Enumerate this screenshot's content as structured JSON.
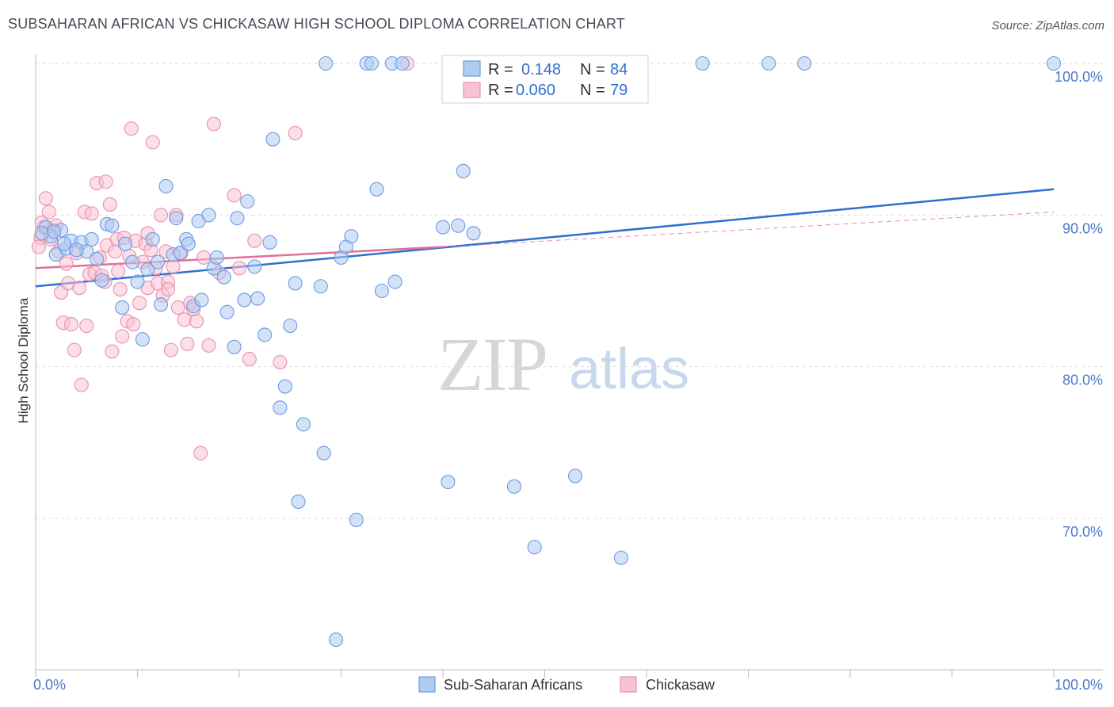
{
  "header": {
    "title": "SUBSAHARAN AFRICAN VS CHICKASAW HIGH SCHOOL DIPLOMA CORRELATION CHART",
    "source": "Source: ZipAtlas.com"
  },
  "watermark": {
    "zip": "ZIP",
    "atlas": "atlas"
  },
  "legend_box": {
    "row1": {
      "r_label": "R =",
      "r_value": "0.148",
      "n_label": "N =",
      "n_value": "84"
    },
    "row2": {
      "r_label": "R =",
      "r_value": "0.060",
      "n_label": "N =",
      "n_value": "79"
    }
  },
  "chart_data": {
    "type": "scatter",
    "ylabel": "High School Diploma",
    "xlabel": "",
    "xlim": [
      0,
      100
    ],
    "ylim": [
      62,
      101.5
    ],
    "x_tick_labels": [
      "0.0%",
      "100.0%"
    ],
    "y_ticks": [
      70,
      80,
      90,
      100
    ],
    "y_tick_labels": [
      "70.0%",
      "80.0%",
      "90.0%",
      "100.0%"
    ],
    "grid": "horizontal dashed",
    "legend": "bottom-center",
    "colors": {
      "blue_fill": "#aecbf0",
      "blue_stroke": "#6c9be0",
      "blue_line": "#2f6fd0",
      "pink_fill": "#f7c3d3",
      "pink_stroke": "#ea8fad",
      "pink_line": "#e06f98"
    },
    "series": [
      {
        "name": "Sub-Saharan Africans",
        "r": 0.148,
        "n": 84,
        "trend": {
          "x": [
            0,
            100
          ],
          "y": [
            85.3,
            91.7
          ],
          "style": "solid"
        },
        "points": [
          [
            1.0,
            89.2
          ],
          [
            1.5,
            88.6
          ],
          [
            2.5,
            89.0
          ],
          [
            2.0,
            87.4
          ],
          [
            3.0,
            87.8
          ],
          [
            3.5,
            88.3
          ],
          [
            4.5,
            88.2
          ],
          [
            5.0,
            87.6
          ],
          [
            5.5,
            88.4
          ],
          [
            6.0,
            87.1
          ],
          [
            6.5,
            85.7
          ],
          [
            7.0,
            89.4
          ],
          [
            7.5,
            89.3
          ],
          [
            8.5,
            83.9
          ],
          [
            8.8,
            88.1
          ],
          [
            9.5,
            86.9
          ],
          [
            10.0,
            85.6
          ],
          [
            10.5,
            81.8
          ],
          [
            11.0,
            86.4
          ],
          [
            11.5,
            88.4
          ],
          [
            12.0,
            86.9
          ],
          [
            12.3,
            84.1
          ],
          [
            12.8,
            91.9
          ],
          [
            13.5,
            87.4
          ],
          [
            13.8,
            89.8
          ],
          [
            14.2,
            87.5
          ],
          [
            14.8,
            88.4
          ],
          [
            15.0,
            88.1
          ],
          [
            15.5,
            84.0
          ],
          [
            16.0,
            89.6
          ],
          [
            16.3,
            84.4
          ],
          [
            17.0,
            90.0
          ],
          [
            17.5,
            86.5
          ],
          [
            17.8,
            87.2
          ],
          [
            18.5,
            85.9
          ],
          [
            18.8,
            83.6
          ],
          [
            19.5,
            81.3
          ],
          [
            19.8,
            89.8
          ],
          [
            20.5,
            84.4
          ],
          [
            20.8,
            90.9
          ],
          [
            21.5,
            86.6
          ],
          [
            21.8,
            84.5
          ],
          [
            22.5,
            82.1
          ],
          [
            23.0,
            88.2
          ],
          [
            23.3,
            95.0
          ],
          [
            24.0,
            77.3
          ],
          [
            24.5,
            78.7
          ],
          [
            25.0,
            82.7
          ],
          [
            25.5,
            85.5
          ],
          [
            25.8,
            71.1
          ],
          [
            26.3,
            76.2
          ],
          [
            28.0,
            85.3
          ],
          [
            28.3,
            74.3
          ],
          [
            28.5,
            100.0
          ],
          [
            29.5,
            62.0
          ],
          [
            30.0,
            87.2
          ],
          [
            30.5,
            87.9
          ],
          [
            31.0,
            88.6
          ],
          [
            31.5,
            69.9
          ],
          [
            32.5,
            100.0
          ],
          [
            33.0,
            100.0
          ],
          [
            33.5,
            91.7
          ],
          [
            34.0,
            85.0
          ],
          [
            35.0,
            100.0
          ],
          [
            35.3,
            85.6
          ],
          [
            36.0,
            100.0
          ],
          [
            40.0,
            89.2
          ],
          [
            40.5,
            72.4
          ],
          [
            41.5,
            89.3
          ],
          [
            42.0,
            92.9
          ],
          [
            43.0,
            88.8
          ],
          [
            47.0,
            72.1
          ],
          [
            49.0,
            68.1
          ],
          [
            52.0,
            100.0
          ],
          [
            53.0,
            72.8
          ],
          [
            57.5,
            67.4
          ],
          [
            65.5,
            100.0
          ],
          [
            72.0,
            100.0
          ],
          [
            75.5,
            100.0
          ],
          [
            100.0,
            100.0
          ],
          [
            0.6,
            88.8
          ],
          [
            1.8,
            88.9
          ],
          [
            2.8,
            88.1
          ],
          [
            4.0,
            87.7
          ]
        ]
      },
      {
        "name": "Chickasaw",
        "r": 0.06,
        "n": 79,
        "trend": {
          "x": [
            0,
            40
          ],
          "y": [
            86.5,
            87.9
          ],
          "style": "solid",
          "extension": {
            "x": [
              40,
              100
            ],
            "y": [
              87.9,
              90.2
            ],
            "style": "dashed"
          }
        },
        "points": [
          [
            0.5,
            88.5
          ],
          [
            0.8,
            89.2
          ],
          [
            1.0,
            91.1
          ],
          [
            1.3,
            90.2
          ],
          [
            1.5,
            88.4
          ],
          [
            1.8,
            89.0
          ],
          [
            2.0,
            89.3
          ],
          [
            2.3,
            87.6
          ],
          [
            2.5,
            84.9
          ],
          [
            2.7,
            82.9
          ],
          [
            3.0,
            86.8
          ],
          [
            3.2,
            85.5
          ],
          [
            3.5,
            82.8
          ],
          [
            3.8,
            81.1
          ],
          [
            4.0,
            87.5
          ],
          [
            4.3,
            85.2
          ],
          [
            4.5,
            78.8
          ],
          [
            4.8,
            90.2
          ],
          [
            5.0,
            82.7
          ],
          [
            5.3,
            86.1
          ],
          [
            5.5,
            90.1
          ],
          [
            5.8,
            86.2
          ],
          [
            6.0,
            92.1
          ],
          [
            6.3,
            87.2
          ],
          [
            6.5,
            86.0
          ],
          [
            6.8,
            85.6
          ],
          [
            7.0,
            88.0
          ],
          [
            7.3,
            90.7
          ],
          [
            7.5,
            81.0
          ],
          [
            7.8,
            87.6
          ],
          [
            8.0,
            88.4
          ],
          [
            8.3,
            85.1
          ],
          [
            8.5,
            82.0
          ],
          [
            8.7,
            88.5
          ],
          [
            9.0,
            83.0
          ],
          [
            9.2,
            87.3
          ],
          [
            9.4,
            95.7
          ],
          [
            9.6,
            82.8
          ],
          [
            9.8,
            88.3
          ],
          [
            10.2,
            84.2
          ],
          [
            10.5,
            86.9
          ],
          [
            10.8,
            88.1
          ],
          [
            11.0,
            85.2
          ],
          [
            11.3,
            87.7
          ],
          [
            11.5,
            94.8
          ],
          [
            11.8,
            86.5
          ],
          [
            12.0,
            85.5
          ],
          [
            12.3,
            90.0
          ],
          [
            12.5,
            84.7
          ],
          [
            12.8,
            87.6
          ],
          [
            13.0,
            85.6
          ],
          [
            13.3,
            81.1
          ],
          [
            13.5,
            86.6
          ],
          [
            13.8,
            90.0
          ],
          [
            14.0,
            83.9
          ],
          [
            14.3,
            87.5
          ],
          [
            14.6,
            83.1
          ],
          [
            14.9,
            81.5
          ],
          [
            15.2,
            84.2
          ],
          [
            15.5,
            83.8
          ],
          [
            15.8,
            83.0
          ],
          [
            16.2,
            74.3
          ],
          [
            16.5,
            87.2
          ],
          [
            17.0,
            81.4
          ],
          [
            17.5,
            96.0
          ],
          [
            18.0,
            86.2
          ],
          [
            19.5,
            91.3
          ],
          [
            20.0,
            86.5
          ],
          [
            21.0,
            80.5
          ],
          [
            21.5,
            88.3
          ],
          [
            24.0,
            80.3
          ],
          [
            25.5,
            95.4
          ],
          [
            36.5,
            100.0
          ],
          [
            0.3,
            87.9
          ],
          [
            0.6,
            89.5
          ],
          [
            6.9,
            92.2
          ],
          [
            11.0,
            88.8
          ],
          [
            13.0,
            85.1
          ],
          [
            8.1,
            86.3
          ]
        ]
      }
    ]
  }
}
